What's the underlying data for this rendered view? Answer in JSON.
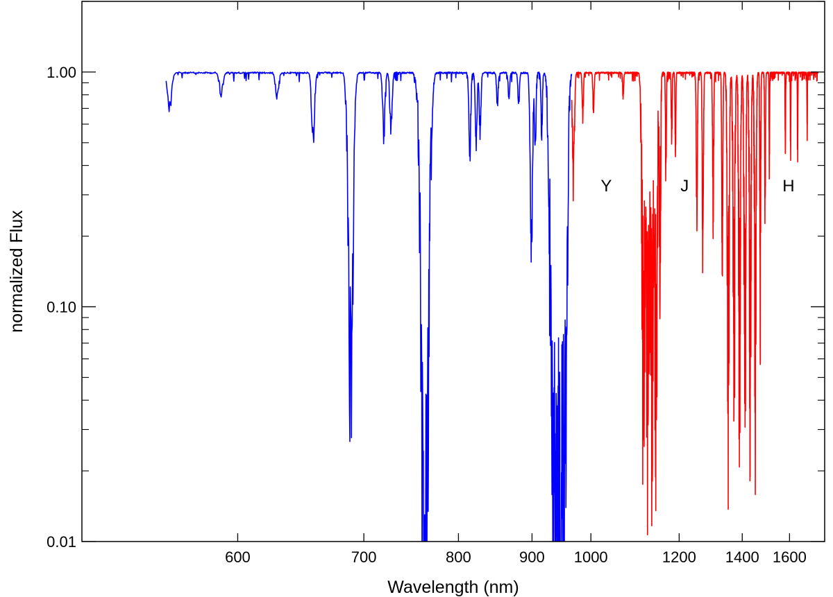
{
  "chart_data": {
    "type": "line",
    "title": "",
    "xlabel": "Wavelength (nm)",
    "ylabel": "normalized Flux",
    "yscale": "log",
    "xscale": "reciprocal",
    "xlim": [
      510,
      1790
    ],
    "ylim": [
      0.01,
      2.0
    ],
    "x_ticks": [
      600,
      700,
      800,
      900,
      1000,
      1200,
      1400,
      1600
    ],
    "x_tick_labels": [
      "600",
      "700",
      "800",
      "900",
      "1000",
      "1200",
      "1400",
      "1600"
    ],
    "y_ticks": [
      0.01,
      0.1,
      1.0
    ],
    "y_tick_labels": [
      "0.01",
      "0.10",
      "1.00"
    ],
    "grid": false,
    "legend": "none",
    "annotations": [
      {
        "text": "Y",
        "x": 1030,
        "y": 0.33
      },
      {
        "text": "J",
        "x": 1215,
        "y": 0.33
      },
      {
        "text": "H",
        "x": 1595,
        "y": 0.33
      }
    ],
    "series": [
      {
        "color": "#0000ff",
        "range": [
          555,
          965
        ],
        "absorption_features": [
          {
            "x": 557,
            "depth": 0.65
          },
          {
            "x": 589,
            "depth": 0.78
          },
          {
            "x": 628,
            "depth": 0.72
          },
          {
            "x": 656,
            "depth": 0.42
          },
          {
            "x": 687,
            "depth": 0.073
          },
          {
            "x": 689,
            "depth": 0.12
          },
          {
            "x": 719,
            "depth": 0.47
          },
          {
            "x": 726,
            "depth": 0.52
          },
          {
            "x": 760,
            "depth": 0.01
          },
          {
            "x": 763,
            "depth": 0.01
          },
          {
            "x": 814,
            "depth": 0.38
          },
          {
            "x": 822,
            "depth": 0.45
          },
          {
            "x": 827,
            "depth": 0.5
          },
          {
            "x": 850,
            "depth": 0.7
          },
          {
            "x": 866,
            "depth": 0.75
          },
          {
            "x": 880,
            "depth": 0.68
          },
          {
            "x": 899,
            "depth": 0.14
          },
          {
            "x": 905,
            "depth": 0.4
          },
          {
            "x": 915,
            "depth": 0.5
          },
          {
            "x": 930,
            "depth": 0.03
          },
          {
            "x": 935,
            "depth": 0.023
          },
          {
            "x": 940,
            "depth": 0.02
          },
          {
            "x": 945,
            "depth": 0.016
          },
          {
            "x": 950,
            "depth": 0.03
          },
          {
            "x": 955,
            "depth": 0.03
          }
        ]
      },
      {
        "color": "#ff0000",
        "range": [
          965,
          1750
        ],
        "absorption_features": [
          {
            "x": 968,
            "depth": 0.28
          },
          {
            "x": 985,
            "depth": 0.6
          },
          {
            "x": 1005,
            "depth": 0.6
          },
          {
            "x": 1065,
            "depth": 0.75
          },
          {
            "x": 1110,
            "depth": 0.01
          },
          {
            "x": 1120,
            "depth": 0.01
          },
          {
            "x": 1130,
            "depth": 0.01
          },
          {
            "x": 1140,
            "depth": 0.012
          },
          {
            "x": 1150,
            "depth": 0.08
          },
          {
            "x": 1165,
            "depth": 0.3
          },
          {
            "x": 1180,
            "depth": 0.45
          },
          {
            "x": 1190,
            "depth": 0.4
          },
          {
            "x": 1250,
            "depth": 0.2
          },
          {
            "x": 1268,
            "depth": 0.12
          },
          {
            "x": 1300,
            "depth": 0.2
          },
          {
            "x": 1330,
            "depth": 0.1
          },
          {
            "x": 1350,
            "depth": 0.013
          },
          {
            "x": 1370,
            "depth": 0.012
          },
          {
            "x": 1390,
            "depth": 0.013
          },
          {
            "x": 1410,
            "depth": 0.012
          },
          {
            "x": 1430,
            "depth": 0.012
          },
          {
            "x": 1450,
            "depth": 0.015
          },
          {
            "x": 1470,
            "depth": 0.05
          },
          {
            "x": 1490,
            "depth": 0.2
          },
          {
            "x": 1508,
            "depth": 0.35
          },
          {
            "x": 1580,
            "depth": 0.38
          },
          {
            "x": 1605,
            "depth": 0.38
          },
          {
            "x": 1640,
            "depth": 0.33
          },
          {
            "x": 1690,
            "depth": 0.5
          }
        ]
      }
    ]
  }
}
